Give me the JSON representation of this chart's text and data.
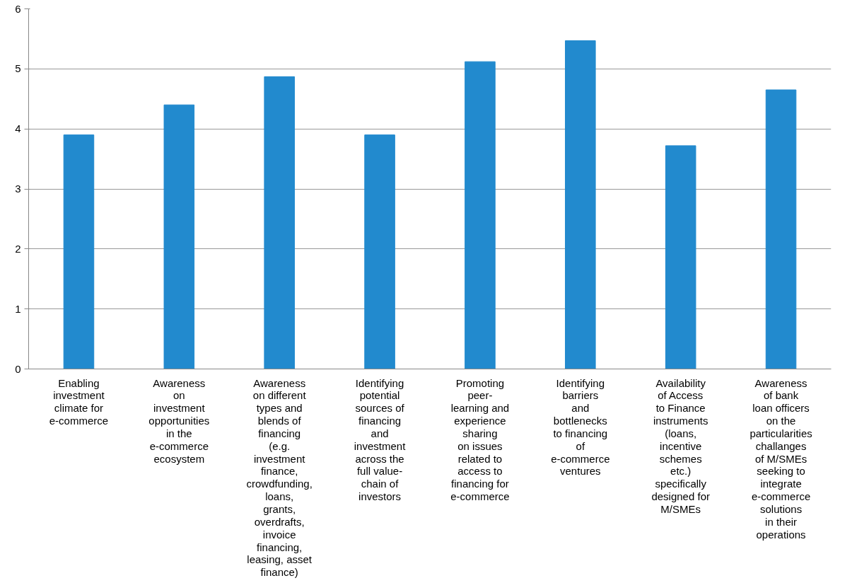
{
  "chart_data": {
    "type": "bar",
    "categories": [
      "Enabling\ninvestment\nclimate for\ne-commerce",
      "Awareness\non\ninvestment\nopportunities\nin the\ne-commerce\necosystem",
      "Awareness\non different\ntypes and\nblends of\nfinancing\n(e.g.\ninvestment\nfinance,\ncrowdfunding,\nloans,\ngrants,\noverdrafts,\ninvoice\nfinancing,\nleasing, asset\nfinance)",
      "Identifying\npotential\nsources of\nfinancing\nand\ninvestment\nacross the\nfull value-\nchain of\ninvestors",
      "Promoting\npeer-\nlearning and\nexperience\nsharing\non issues\nrelated to\naccess to\nfinancing for\ne-commerce",
      "Identifying\nbarriers\nand\nbottlenecks\nto financing\nof\ne-commerce\nventures",
      "Availability\nof Access\nto Finance\ninstruments\n(loans,\nincentive\nschemes\netc.)\nspecifically\ndesigned for\nM/SMEs",
      "Awareness\nof bank\nloan officers\non the\nparticularities\nchallanges\nof M/SMEs\nseeking to\nintegrate\ne-commerce\nsolutions\nin their\noperations"
    ],
    "values": [
      3.9,
      4.4,
      4.87,
      3.9,
      5.12,
      5.47,
      3.72,
      4.65
    ],
    "color": "#228ace",
    "ylim": [
      0,
      6
    ],
    "yticks": [
      0,
      1,
      2,
      3,
      4,
      5,
      6
    ],
    "grid": "y"
  }
}
